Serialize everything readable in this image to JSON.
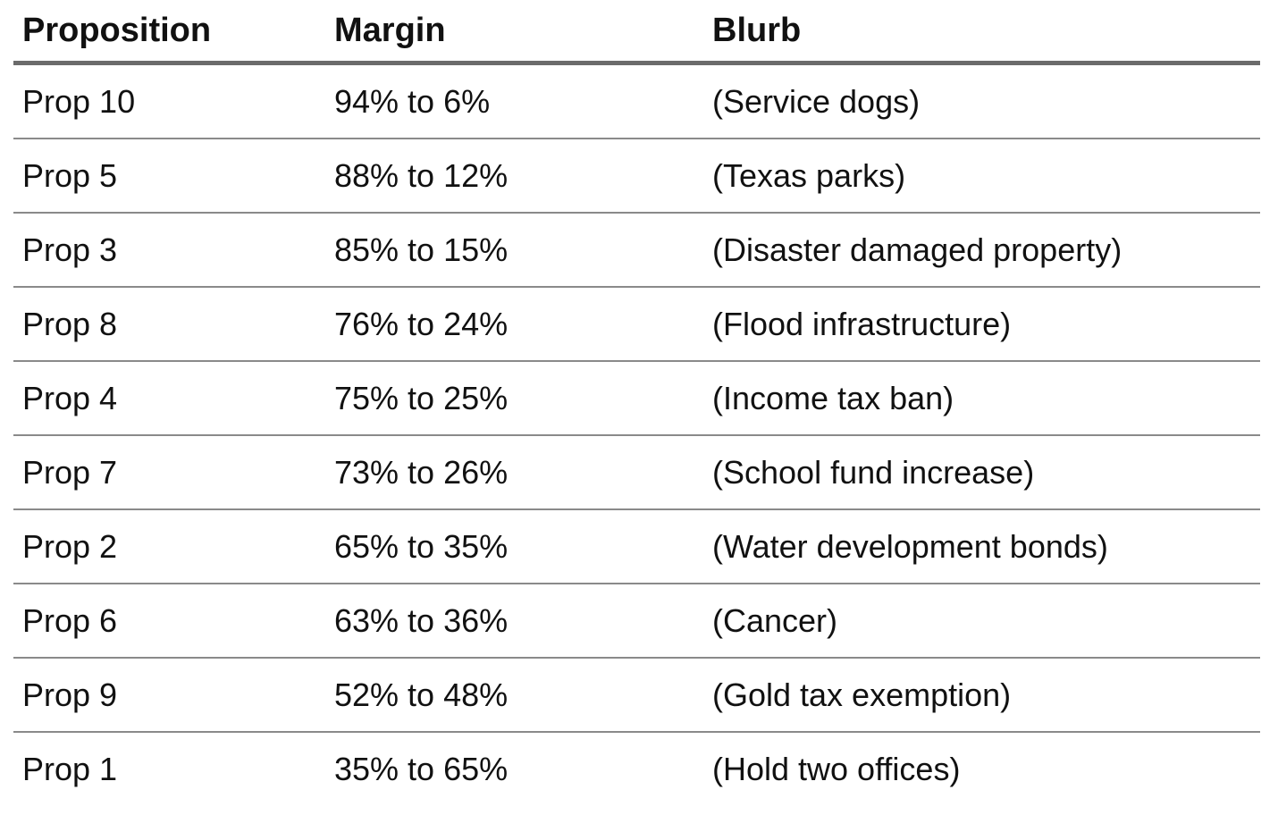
{
  "table": {
    "headers": [
      "Proposition",
      "Margin",
      "Blurb"
    ],
    "rows": [
      {
        "proposition": "Prop 10",
        "margin": "94% to 6%",
        "blurb": "(Service dogs)"
      },
      {
        "proposition": "Prop 5",
        "margin": "88% to 12%",
        "blurb": "(Texas parks)"
      },
      {
        "proposition": "Prop 3",
        "margin": "85% to 15%",
        "blurb": "(Disaster damaged property)"
      },
      {
        "proposition": "Prop 8",
        "margin": "76% to 24%",
        "blurb": "(Flood infrastructure)"
      },
      {
        "proposition": "Prop 4",
        "margin": "75% to 25%",
        "blurb": "(Income tax ban)"
      },
      {
        "proposition": "Prop 7",
        "margin": "73% to 26%",
        "blurb": "(School fund increase)"
      },
      {
        "proposition": "Prop 2",
        "margin": "65% to 35%",
        "blurb": "(Water development bonds)"
      },
      {
        "proposition": "Prop 6",
        "margin": "63% to 36%",
        "blurb": "(Cancer)"
      },
      {
        "proposition": "Prop 9",
        "margin": "52% to 48%",
        "blurb": "(Gold tax exemption)"
      },
      {
        "proposition": "Prop 1",
        "margin": "35% to 65%",
        "blurb": "(Hold two offices)"
      }
    ]
  }
}
